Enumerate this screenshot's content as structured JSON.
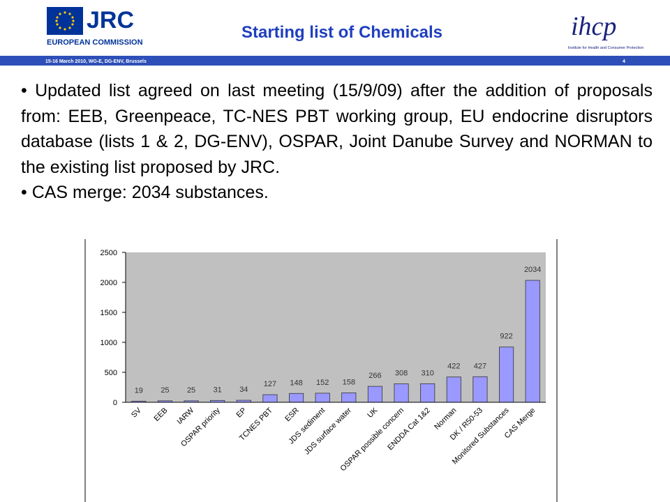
{
  "header": {
    "logo_left": "JRC",
    "logo_left_sub": "EUROPEAN COMMISSION",
    "title": "Starting list of Chemicals",
    "logo_right": "ihcp",
    "logo_right_sub": "Institute for Health and Consumer Protection",
    "meeting": "15-16 March 2010, WG-E, DG-ENV, Brussels",
    "page": "4"
  },
  "bullets": [
    "• Updated list agreed on last meeting (15/9/09) after the addition of  proposals from: EEB, Greenpeace, TC-NES PBT working group, EU endocrine disruptors database (lists 1 & 2, DG-ENV), OSPAR, Joint Danube Survey and NORMAN  to the existing list proposed by JRC.",
    "• CAS merge: 2034 substances."
  ],
  "chart_data": {
    "type": "bar",
    "categories": [
      "SV",
      "EEB",
      "IARW",
      "OSPAR priority",
      "EP",
      "TCNES PBT",
      "ESR",
      "JDS sediment",
      "JDS surface water",
      "UK",
      "OSPAR possible concern",
      "ENDDA Cat 1&2",
      "Norman",
      "DK / R50-53",
      "Monitored Substances",
      "CAS Merge"
    ],
    "values": [
      19,
      25,
      25,
      31,
      34,
      127,
      148,
      152,
      158,
      266,
      308,
      310,
      422,
      427,
      922,
      2034
    ],
    "color": "#9999ff",
    "ylim": [
      0,
      2500
    ],
    "yticks": [
      0,
      500,
      1000,
      1500,
      2000,
      2500
    ],
    "grid": false
  }
}
